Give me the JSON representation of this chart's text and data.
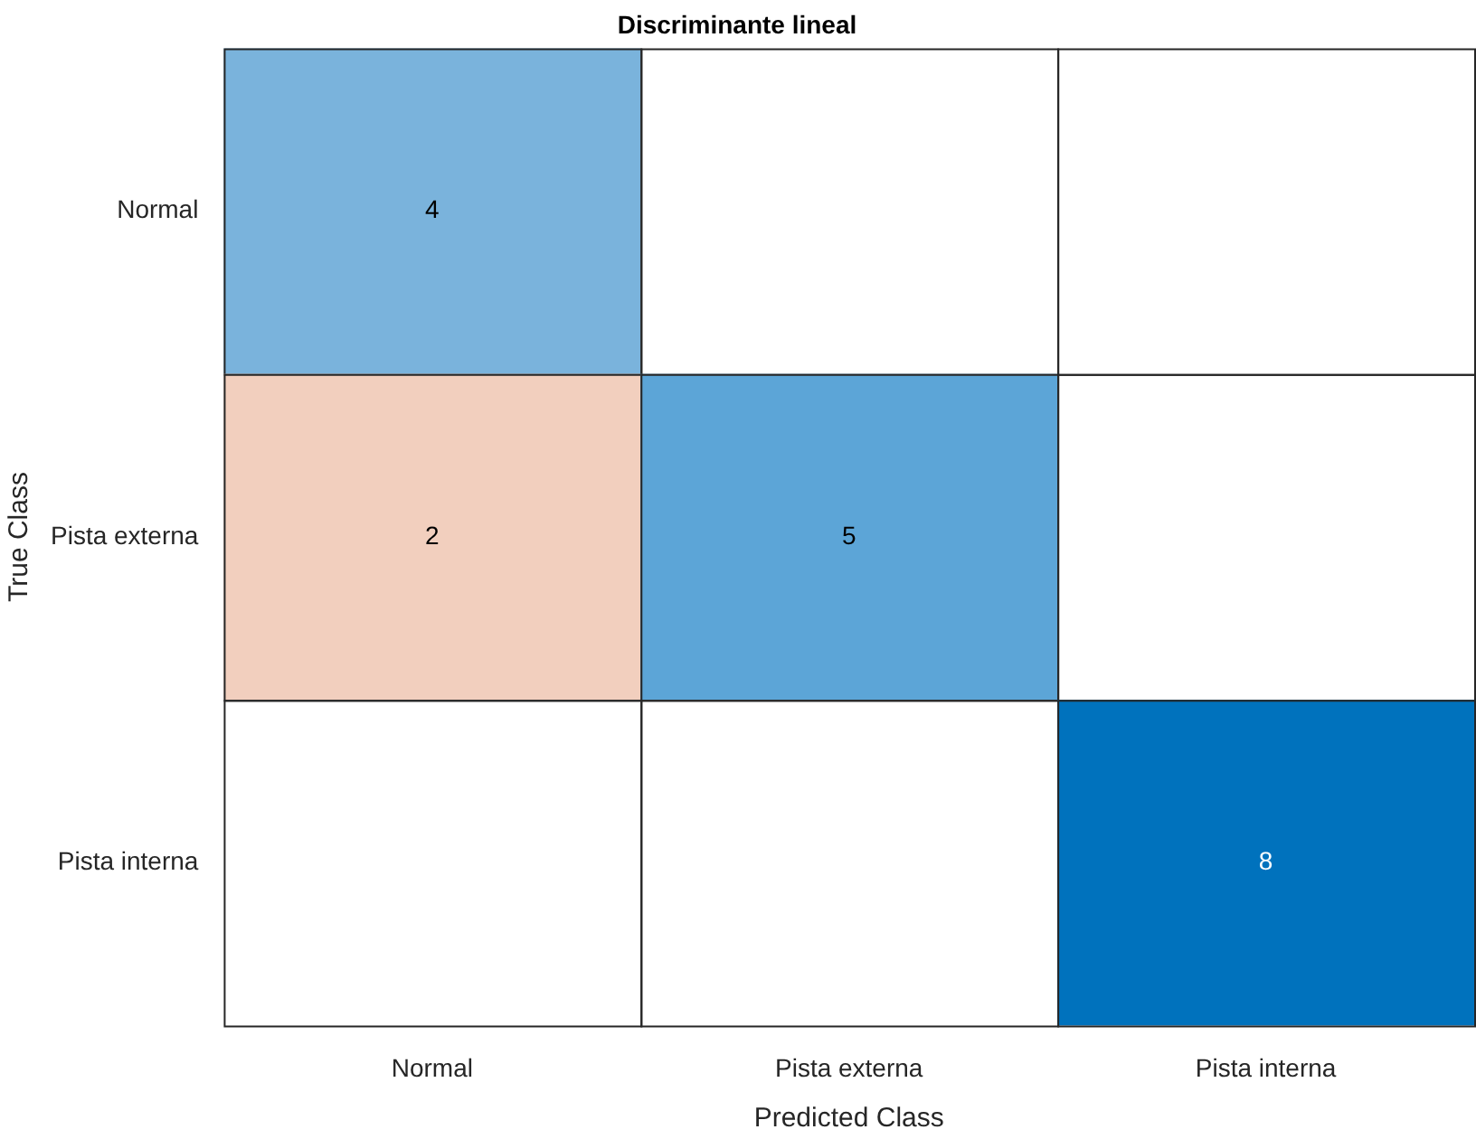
{
  "chart_data": {
    "type": "heatmap",
    "title": "Discriminante lineal",
    "xlabel": "Predicted Class",
    "ylabel": "True Class",
    "categories": [
      "Normal",
      "Pista externa",
      "Pista interna"
    ],
    "y_categories": [
      "Normal",
      "Pista externa",
      "Pista interna"
    ],
    "cells": [
      [
        4,
        null,
        null
      ],
      [
        2,
        5,
        null
      ],
      [
        null,
        null,
        8
      ]
    ],
    "colors": [
      [
        "#7ab3dc",
        null,
        null
      ],
      [
        "#f2cfbe",
        "#5ca5d7",
        null
      ],
      [
        null,
        null,
        "#0072bd"
      ]
    ],
    "data_labels": true
  }
}
